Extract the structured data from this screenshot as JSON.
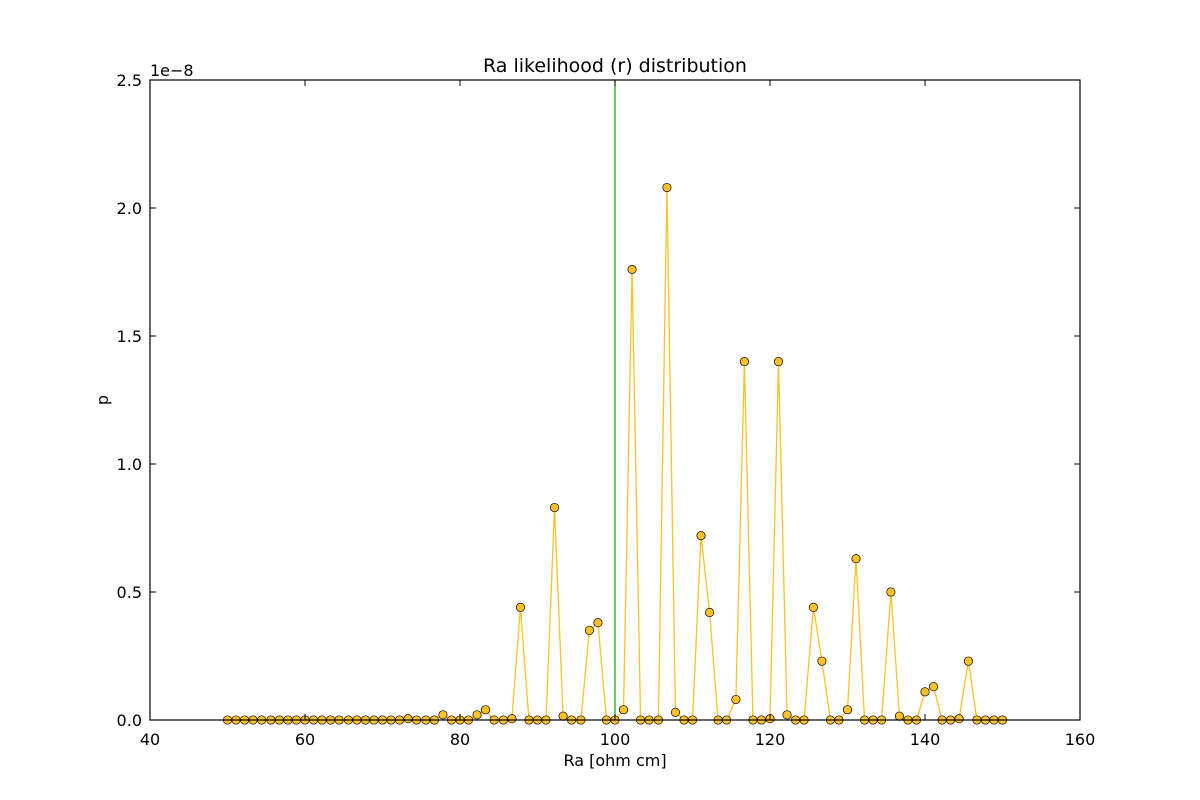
{
  "chart_data": {
    "type": "line",
    "title": "Ra likelihood (r) distribution",
    "xlabel": "Ra [ohm cm]",
    "ylabel": "p",
    "y_offset_label": "1e−8",
    "y_scale": 1e-08,
    "xlim": [
      40,
      160
    ],
    "ylim": [
      0,
      2.5
    ],
    "xticks": [
      40,
      60,
      80,
      100,
      120,
      140,
      160
    ],
    "xtick_labels": [
      "40",
      "60",
      "80",
      "100",
      "120",
      "140",
      "160"
    ],
    "yticks": [
      0.0,
      0.5,
      1.0,
      1.5,
      2.0,
      2.5
    ],
    "ytick_labels": [
      "0.0",
      "0.5",
      "1.0",
      "1.5",
      "2.0",
      "2.5"
    ],
    "grid": false,
    "reference_line": {
      "x": 100,
      "color": "#00aa00"
    },
    "series": [
      {
        "color": "#ffc125",
        "marker": "circle",
        "x": [
          50.0,
          51.1,
          52.2,
          53.3,
          54.4,
          55.6,
          56.7,
          57.8,
          58.9,
          60.0,
          61.1,
          62.2,
          63.3,
          64.4,
          65.6,
          66.7,
          67.8,
          68.9,
          70.0,
          71.1,
          72.2,
          73.3,
          74.4,
          75.6,
          76.7,
          77.8,
          78.9,
          80.0,
          81.1,
          82.2,
          83.3,
          84.4,
          85.6,
          86.7,
          87.8,
          88.9,
          90.0,
          91.1,
          92.2,
          93.3,
          94.4,
          95.6,
          96.7,
          97.8,
          98.9,
          100.0,
          101.1,
          102.2,
          103.3,
          104.4,
          105.6,
          106.7,
          107.8,
          108.9,
          110.0,
          111.1,
          112.2,
          113.3,
          114.4,
          115.6,
          116.7,
          117.8,
          118.9,
          120.0,
          121.1,
          122.2,
          123.3,
          124.4,
          125.6,
          126.7,
          127.8,
          128.9,
          130.0,
          131.1,
          132.2,
          133.3,
          134.4,
          135.6,
          136.7,
          137.8,
          138.9,
          140.0,
          141.1,
          142.2,
          143.3,
          144.4,
          145.6,
          146.7,
          147.8,
          148.9,
          150.0
        ],
        "y": [
          0,
          0,
          0,
          0,
          0,
          0,
          0,
          0,
          0,
          0,
          0,
          0,
          0,
          0,
          0,
          0,
          0,
          0,
          0,
          0,
          0,
          0.005,
          0,
          0,
          0,
          0.02,
          0,
          0,
          0,
          0.02,
          0.04,
          0,
          0,
          0.005,
          0.44,
          0,
          0,
          0,
          0.83,
          0.015,
          0,
          0,
          0.35,
          0.38,
          0,
          0,
          0.04,
          1.76,
          0,
          0,
          0,
          2.08,
          0.03,
          0,
          0,
          0.72,
          0.42,
          0,
          0,
          0.08,
          1.4,
          0,
          0,
          0.005,
          1.4,
          0.02,
          0,
          0,
          0.44,
          0.23,
          0,
          0,
          0.04,
          0.63,
          0,
          0,
          0,
          0.5,
          0.015,
          0,
          0,
          0.11,
          0.13,
          0,
          0,
          0.005,
          0.23,
          0,
          0,
          0,
          0
        ]
      }
    ]
  }
}
